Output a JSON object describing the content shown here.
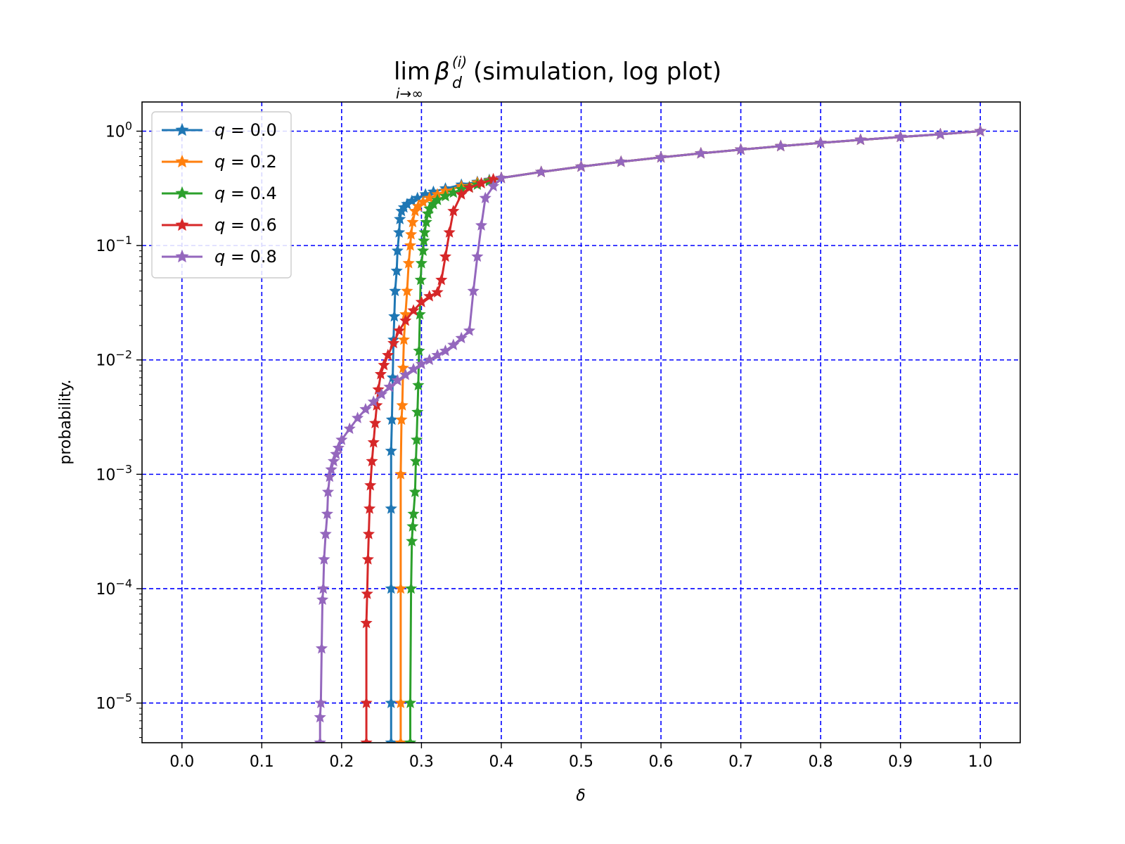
{
  "chart_data": {
    "type": "line",
    "title": {
      "lim": "lim",
      "beta": "β",
      "sub": "d",
      "sup": "(i)",
      "under": "i→∞",
      "suffix": " (simulation, log plot)"
    },
    "xlabel": "δ",
    "ylabel": "probability.",
    "xlim": [
      -0.05,
      1.05
    ],
    "ylim": [
      4.5e-06,
      1.8
    ],
    "yscale": "log",
    "grid": true,
    "grid_color": "#0000ff",
    "legend_position": "top-left",
    "x_ticks": [
      "0.0",
      "0.1",
      "0.2",
      "0.3",
      "0.4",
      "0.5",
      "0.6",
      "0.7",
      "0.8",
      "0.9",
      "1.0"
    ],
    "y_ticks": [
      {
        "base": "10",
        "exp": "0",
        "value": 1
      },
      {
        "base": "10",
        "exp": "−1",
        "value": 0.1
      },
      {
        "base": "10",
        "exp": "−2",
        "value": 0.01
      },
      {
        "base": "10",
        "exp": "−3",
        "value": 0.001
      },
      {
        "base": "10",
        "exp": "−4",
        "value": 0.0001
      },
      {
        "base": "10",
        "exp": "−5",
        "value": 1e-05
      }
    ],
    "series": [
      {
        "name": "q = 0.0",
        "color": "#1f77b4",
        "points": [
          [
            0.262,
            4.5e-06
          ],
          [
            0.262,
            1e-05
          ],
          [
            0.262,
            0.0001
          ],
          [
            0.262,
            0.0005
          ],
          [
            0.262,
            0.0016
          ],
          [
            0.263,
            0.003
          ],
          [
            0.264,
            0.007
          ],
          [
            0.265,
            0.015
          ],
          [
            0.266,
            0.024
          ],
          [
            0.267,
            0.04
          ],
          [
            0.269,
            0.06
          ],
          [
            0.27,
            0.09
          ],
          [
            0.272,
            0.13
          ],
          [
            0.273,
            0.17
          ],
          [
            0.275,
            0.2
          ],
          [
            0.278,
            0.215
          ],
          [
            0.282,
            0.23
          ],
          [
            0.288,
            0.245
          ],
          [
            0.295,
            0.26
          ],
          [
            0.305,
            0.28
          ],
          [
            0.315,
            0.295
          ],
          [
            0.33,
            0.315
          ],
          [
            0.35,
            0.34
          ],
          [
            0.37,
            0.36
          ],
          [
            0.385,
            0.375
          ],
          [
            0.4,
            0.39
          ],
          [
            0.45,
            0.44
          ],
          [
            0.5,
            0.49
          ],
          [
            0.55,
            0.54
          ],
          [
            0.6,
            0.59
          ],
          [
            0.65,
            0.64
          ],
          [
            0.7,
            0.69
          ],
          [
            0.75,
            0.74
          ],
          [
            0.8,
            0.79
          ],
          [
            0.85,
            0.84
          ],
          [
            0.9,
            0.89
          ],
          [
            0.95,
            0.94
          ],
          [
            1.0,
            1.0
          ]
        ]
      },
      {
        "name": "q = 0.2",
        "color": "#ff7f0e",
        "points": [
          [
            0.274,
            4.5e-06
          ],
          [
            0.274,
            1e-05
          ],
          [
            0.274,
            0.0001
          ],
          [
            0.274,
            0.001
          ],
          [
            0.275,
            0.003
          ],
          [
            0.276,
            0.004
          ],
          [
            0.277,
            0.0085
          ],
          [
            0.278,
            0.015
          ],
          [
            0.28,
            0.025
          ],
          [
            0.282,
            0.04
          ],
          [
            0.284,
            0.07
          ],
          [
            0.286,
            0.1
          ],
          [
            0.287,
            0.125
          ],
          [
            0.289,
            0.16
          ],
          [
            0.292,
            0.2
          ],
          [
            0.296,
            0.22
          ],
          [
            0.302,
            0.24
          ],
          [
            0.31,
            0.26
          ],
          [
            0.32,
            0.28
          ],
          [
            0.33,
            0.3
          ],
          [
            0.35,
            0.33
          ],
          [
            0.37,
            0.355
          ],
          [
            0.385,
            0.37
          ],
          [
            0.4,
            0.39
          ],
          [
            0.45,
            0.44
          ],
          [
            0.5,
            0.49
          ],
          [
            0.55,
            0.54
          ],
          [
            0.6,
            0.59
          ],
          [
            0.65,
            0.64
          ],
          [
            0.7,
            0.69
          ],
          [
            0.75,
            0.74
          ],
          [
            0.8,
            0.79
          ],
          [
            0.85,
            0.84
          ],
          [
            0.9,
            0.89
          ],
          [
            0.95,
            0.94
          ],
          [
            1.0,
            1.0
          ]
        ]
      },
      {
        "name": "q = 0.4",
        "color": "#2ca02c",
        "points": [
          [
            0.286,
            4.5e-06
          ],
          [
            0.286,
            1e-05
          ],
          [
            0.287,
            0.0001
          ],
          [
            0.288,
            0.00026
          ],
          [
            0.289,
            0.00035
          ],
          [
            0.29,
            0.00045
          ],
          [
            0.292,
            0.0007
          ],
          [
            0.293,
            0.0013
          ],
          [
            0.294,
            0.002
          ],
          [
            0.295,
            0.0035
          ],
          [
            0.296,
            0.006
          ],
          [
            0.297,
            0.012
          ],
          [
            0.298,
            0.025
          ],
          [
            0.299,
            0.05
          ],
          [
            0.3,
            0.07
          ],
          [
            0.302,
            0.09
          ],
          [
            0.303,
            0.11
          ],
          [
            0.304,
            0.13
          ],
          [
            0.306,
            0.16
          ],
          [
            0.308,
            0.19
          ],
          [
            0.31,
            0.21
          ],
          [
            0.315,
            0.23
          ],
          [
            0.32,
            0.25
          ],
          [
            0.33,
            0.27
          ],
          [
            0.34,
            0.29
          ],
          [
            0.35,
            0.31
          ],
          [
            0.36,
            0.325
          ],
          [
            0.37,
            0.34
          ],
          [
            0.385,
            0.365
          ],
          [
            0.4,
            0.39
          ],
          [
            0.45,
            0.44
          ],
          [
            0.5,
            0.49
          ],
          [
            0.55,
            0.54
          ],
          [
            0.6,
            0.59
          ],
          [
            0.65,
            0.64
          ],
          [
            0.7,
            0.69
          ],
          [
            0.75,
            0.74
          ],
          [
            0.8,
            0.79
          ],
          [
            0.85,
            0.84
          ],
          [
            0.9,
            0.89
          ],
          [
            0.95,
            0.94
          ],
          [
            1.0,
            1.0
          ]
        ]
      },
      {
        "name": "q = 0.6",
        "color": "#d62728",
        "points": [
          [
            0.231,
            4.5e-06
          ],
          [
            0.231,
            1e-05
          ],
          [
            0.231,
            5e-05
          ],
          [
            0.232,
            9e-05
          ],
          [
            0.233,
            0.00018
          ],
          [
            0.234,
            0.0003
          ],
          [
            0.235,
            0.0005
          ],
          [
            0.236,
            0.0008
          ],
          [
            0.238,
            0.0013
          ],
          [
            0.24,
            0.0019
          ],
          [
            0.242,
            0.0028
          ],
          [
            0.244,
            0.004
          ],
          [
            0.246,
            0.0055
          ],
          [
            0.249,
            0.0075
          ],
          [
            0.253,
            0.009
          ],
          [
            0.258,
            0.011
          ],
          [
            0.265,
            0.014
          ],
          [
            0.272,
            0.018
          ],
          [
            0.28,
            0.022
          ],
          [
            0.29,
            0.027
          ],
          [
            0.3,
            0.032
          ],
          [
            0.31,
            0.036
          ],
          [
            0.32,
            0.039
          ],
          [
            0.325,
            0.05
          ],
          [
            0.33,
            0.08
          ],
          [
            0.335,
            0.13
          ],
          [
            0.34,
            0.2
          ],
          [
            0.35,
            0.28
          ],
          [
            0.36,
            0.32
          ],
          [
            0.375,
            0.35
          ],
          [
            0.39,
            0.38
          ],
          [
            0.4,
            0.39
          ],
          [
            0.45,
            0.44
          ],
          [
            0.5,
            0.49
          ],
          [
            0.55,
            0.54
          ],
          [
            0.6,
            0.59
          ],
          [
            0.65,
            0.64
          ],
          [
            0.7,
            0.69
          ],
          [
            0.75,
            0.74
          ],
          [
            0.8,
            0.79
          ],
          [
            0.85,
            0.84
          ],
          [
            0.9,
            0.89
          ],
          [
            0.95,
            0.94
          ],
          [
            1.0,
            1.0
          ]
        ]
      },
      {
        "name": "q = 0.8",
        "color": "#9467bd",
        "points": [
          [
            0.173,
            4.5e-06
          ],
          [
            0.173,
            7.5e-06
          ],
          [
            0.174,
            1e-05
          ],
          [
            0.175,
            3e-05
          ],
          [
            0.176,
            8e-05
          ],
          [
            0.177,
            0.0001
          ],
          [
            0.178,
            0.00018
          ],
          [
            0.18,
            0.0003
          ],
          [
            0.182,
            0.00045
          ],
          [
            0.183,
            0.0007
          ],
          [
            0.185,
            0.00095
          ],
          [
            0.187,
            0.0011
          ],
          [
            0.19,
            0.0013
          ],
          [
            0.193,
            0.0015
          ],
          [
            0.196,
            0.0017
          ],
          [
            0.2,
            0.002
          ],
          [
            0.21,
            0.0025
          ],
          [
            0.22,
            0.0031
          ],
          [
            0.23,
            0.0037
          ],
          [
            0.24,
            0.0043
          ],
          [
            0.25,
            0.005
          ],
          [
            0.26,
            0.0058
          ],
          [
            0.27,
            0.0066
          ],
          [
            0.28,
            0.0074
          ],
          [
            0.29,
            0.0083
          ],
          [
            0.3,
            0.0092
          ],
          [
            0.31,
            0.01
          ],
          [
            0.32,
            0.011
          ],
          [
            0.33,
            0.012
          ],
          [
            0.34,
            0.0135
          ],
          [
            0.35,
            0.0155
          ],
          [
            0.36,
            0.018
          ],
          [
            0.365,
            0.04
          ],
          [
            0.37,
            0.08
          ],
          [
            0.375,
            0.15
          ],
          [
            0.38,
            0.26
          ],
          [
            0.39,
            0.33
          ],
          [
            0.4,
            0.39
          ],
          [
            0.45,
            0.44
          ],
          [
            0.5,
            0.49
          ],
          [
            0.55,
            0.54
          ],
          [
            0.6,
            0.59
          ],
          [
            0.65,
            0.64
          ],
          [
            0.7,
            0.69
          ],
          [
            0.75,
            0.74
          ],
          [
            0.8,
            0.79
          ],
          [
            0.85,
            0.84
          ],
          [
            0.9,
            0.89
          ],
          [
            0.95,
            0.94
          ],
          [
            1.0,
            1.0
          ]
        ]
      }
    ],
    "legend_entries": [
      {
        "var": "q",
        "op": " = ",
        "val": "0.0",
        "color": "#1f77b4"
      },
      {
        "var": "q",
        "op": " = ",
        "val": "0.2",
        "color": "#ff7f0e"
      },
      {
        "var": "q",
        "op": " = ",
        "val": "0.4",
        "color": "#2ca02c"
      },
      {
        "var": "q",
        "op": " = ",
        "val": "0.6",
        "color": "#d62728"
      },
      {
        "var": "q",
        "op": " = ",
        "val": "0.8",
        "color": "#9467bd"
      }
    ]
  }
}
